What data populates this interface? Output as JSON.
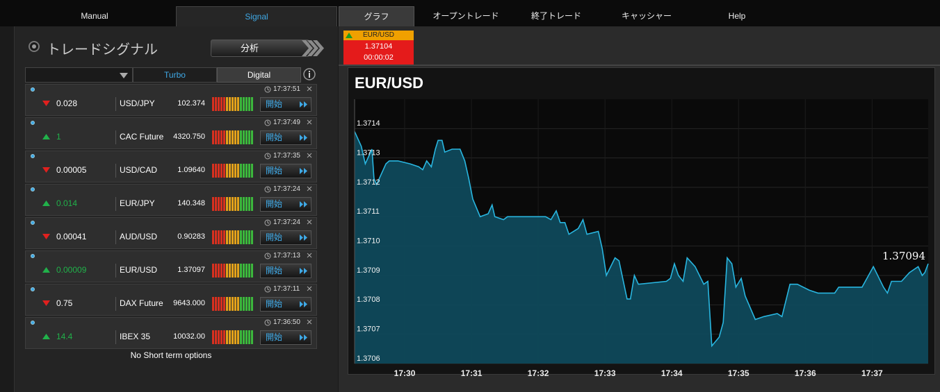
{
  "nav": {
    "tabs": [
      "Manual",
      "Signal",
      "グラフ",
      "オープントレード",
      "終了トレード",
      "キャッシャー",
      "Help"
    ]
  },
  "signal_panel": {
    "title": "トレードシグナル",
    "analysis_button": "分析",
    "tabs": [
      "Turbo",
      "Digital"
    ],
    "rows": [
      {
        "time": "17:37:51",
        "direction": "down",
        "change": "0.028",
        "asset": "USD/JPY",
        "price": "102.374",
        "action": "開始"
      },
      {
        "time": "17:37:49",
        "direction": "up",
        "change": "1",
        "asset": "CAC Future",
        "price": "4320.750",
        "action": "開始"
      },
      {
        "time": "17:37:35",
        "direction": "down",
        "change": "0.00005",
        "asset": "USD/CAD",
        "price": "1.09640",
        "action": "開始"
      },
      {
        "time": "17:37:24",
        "direction": "up",
        "change": "0.014",
        "asset": "EUR/JPY",
        "price": "140.348",
        "action": "開始"
      },
      {
        "time": "17:37:24",
        "direction": "down",
        "change": "0.00041",
        "asset": "AUD/USD",
        "price": "0.90283",
        "action": "開始"
      },
      {
        "time": "17:37:13",
        "direction": "up",
        "change": "0.00009",
        "asset": "EUR/USD",
        "price": "1.37097",
        "action": "開始"
      },
      {
        "time": "17:37:11",
        "direction": "down",
        "change": "0.75",
        "asset": "DAX Future",
        "price": "9643.000",
        "action": "開始"
      },
      {
        "time": "17:36:50",
        "direction": "up",
        "change": "14.4",
        "asset": "IBEX 35",
        "price": "10032.00",
        "action": "開始"
      }
    ],
    "empty_message": "No Short term options"
  },
  "ticker": {
    "asset": "EUR/USD",
    "price": "1.37104",
    "timer": "00:00:02"
  },
  "chart_data": {
    "type": "area",
    "title": "EUR/USD",
    "color": "#29b6e0",
    "fill": "#0e4b5e",
    "grid": true,
    "x": [
      1049.25,
      1049.35,
      1049.41,
      1049.51,
      1049.54,
      1049.58,
      1049.72,
      1049.77,
      1049.9,
      1050.08,
      1050.21,
      1050.27,
      1050.33,
      1050.4,
      1050.46,
      1050.5,
      1050.56,
      1050.6,
      1050.71,
      1050.83,
      1050.9,
      1050.96,
      1051.02,
      1051.13,
      1051.25,
      1051.31,
      1051.35,
      1051.48,
      1051.54,
      1052.11,
      1052.19,
      1052.27,
      1052.33,
      1052.4,
      1052.46,
      1052.6,
      1052.67,
      1052.73,
      1052.9,
      1052.96,
      1053.02,
      1053.15,
      1053.21,
      1053.33,
      1053.38,
      1053.44,
      1053.5,
      1053.92,
      1053.98,
      1054.04,
      1054.1,
      1054.17,
      1054.23,
      1054.35,
      1054.48,
      1054.54,
      1054.6,
      1054.71,
      1054.77,
      1054.83,
      1054.9,
      1054.96,
      1055.04,
      1055.1,
      1055.25,
      1055.38,
      1055.58,
      1055.65,
      1055.77,
      1055.88,
      1056.06,
      1056.19,
      1056.44,
      1056.5,
      1056.85,
      1057.02,
      1057.17,
      1057.23,
      1057.29,
      1057.44,
      1057.56,
      1057.69,
      1057.75,
      1057.79,
      1057.84
    ],
    "values": [
      1.37139,
      1.37134,
      1.37128,
      1.37133,
      1.37123,
      1.37121,
      1.37128,
      1.37129,
      1.37129,
      1.37128,
      1.37127,
      1.37126,
      1.37129,
      1.37127,
      1.37133,
      1.37136,
      1.37136,
      1.37132,
      1.37133,
      1.37133,
      1.37129,
      1.37123,
      1.37116,
      1.3711,
      1.37111,
      1.37114,
      1.3711,
      1.37109,
      1.3711,
      1.3711,
      1.37109,
      1.37112,
      1.37108,
      1.37108,
      1.37104,
      1.37106,
      1.37109,
      1.37104,
      1.37105,
      1.37099,
      1.3709,
      1.37096,
      1.37095,
      1.37082,
      1.37082,
      1.3709,
      1.37087,
      1.37088,
      1.37089,
      1.37094,
      1.3709,
      1.37088,
      1.37096,
      1.37093,
      1.37087,
      1.37088,
      1.37066,
      1.37069,
      1.37074,
      1.37096,
      1.37094,
      1.37086,
      1.37089,
      1.37083,
      1.37075,
      1.37076,
      1.37077,
      1.37076,
      1.37087,
      1.37087,
      1.37085,
      1.37084,
      1.37084,
      1.37086,
      1.37086,
      1.37093,
      1.37086,
      1.37084,
      1.37088,
      1.37088,
      1.37091,
      1.37093,
      1.3709,
      1.37091,
      1.37094
    ],
    "xlim": [
      1049.25,
      1057.84
    ],
    "xticks": [
      {
        "value": 1050,
        "label": "17:30"
      },
      {
        "value": 1051,
        "label": "17:31"
      },
      {
        "value": 1052,
        "label": "17:32"
      },
      {
        "value": 1053,
        "label": "17:33"
      },
      {
        "value": 1054,
        "label": "17:34"
      },
      {
        "value": 1055,
        "label": "17:35"
      },
      {
        "value": 1056,
        "label": "17:36"
      },
      {
        "value": 1057,
        "label": "17:37"
      }
    ],
    "ylim": [
      1.3706,
      1.3715
    ],
    "yticks": [
      1.3706,
      1.3707,
      1.3708,
      1.3709,
      {
        "value": 1.371,
        "label": "1.3710"
      },
      1.3711,
      1.3712,
      1.3713,
      1.3714
    ]
  }
}
